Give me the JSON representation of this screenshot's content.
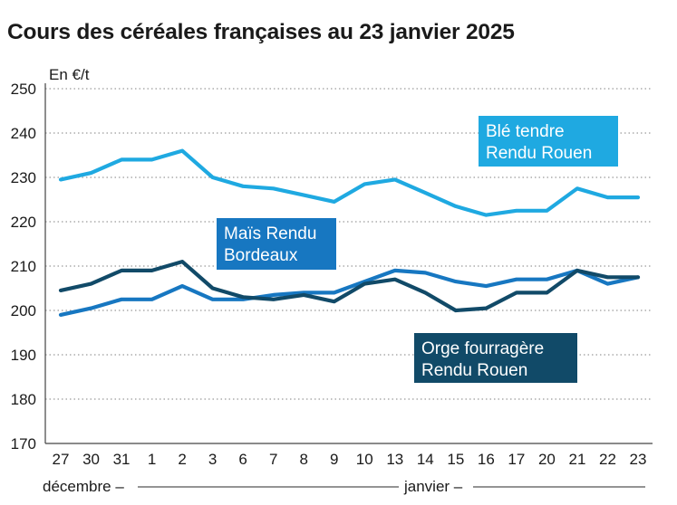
{
  "chart_data": {
    "type": "line",
    "title": "Cours des céréales françaises au 23 janvier 2025",
    "ylabel": "En €/t",
    "ylim": [
      170,
      250
    ],
    "yticks": [
      170,
      180,
      190,
      200,
      210,
      220,
      230,
      240,
      250
    ],
    "categories": [
      "27",
      "30",
      "31",
      "1",
      "2",
      "3",
      "6",
      "7",
      "8",
      "9",
      "10",
      "13",
      "14",
      "15",
      "16",
      "17",
      "20",
      "21",
      "22",
      "23"
    ],
    "months": {
      "december": "décembre –",
      "january": "janvier –"
    },
    "series": [
      {
        "name": "Blé tendre Rendu Rouen",
        "label_lines": [
          "Blé tendre",
          "Rendu Rouen"
        ],
        "color": "#1fa9e1",
        "values": [
          229.5,
          231,
          234,
          234,
          236,
          230,
          228,
          227.5,
          226,
          224.5,
          228.5,
          229.5,
          226.5,
          223.5,
          221.5,
          222.5,
          222.5,
          227.5,
          225.5,
          225.5
        ]
      },
      {
        "name": "Maïs Rendu Bordeaux",
        "label_lines": [
          "Maïs Rendu",
          "Bordeaux"
        ],
        "color": "#1777c1",
        "values": [
          199,
          200.5,
          202.5,
          202.5,
          205.5,
          202.5,
          202.5,
          203.5,
          204,
          204,
          206.5,
          209,
          208.5,
          206.5,
          205.5,
          207,
          207,
          209,
          206,
          207.5
        ]
      },
      {
        "name": "Orge fourragère Rendu Rouen",
        "label_lines": [
          "Orge fourragère",
          "Rendu Rouen"
        ],
        "color": "#114a68",
        "values": [
          204.5,
          206,
          209,
          209,
          211,
          205,
          203,
          202.5,
          203.5,
          202,
          206,
          207,
          204,
          200,
          200.5,
          204,
          204,
          209,
          207.5,
          207.5
        ]
      }
    ]
  }
}
